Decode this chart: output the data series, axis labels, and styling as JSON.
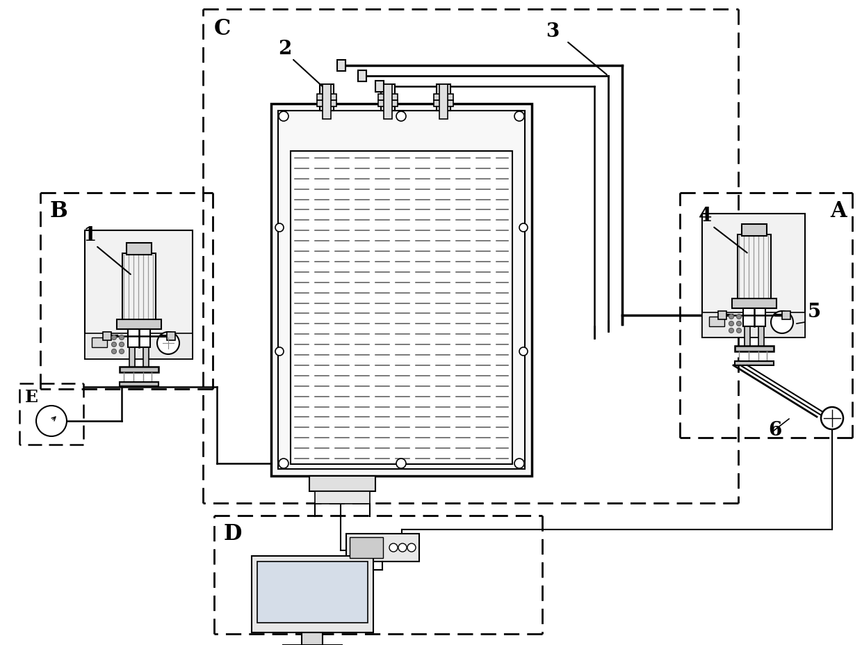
{
  "bg_color": "#ffffff",
  "line_color": "#000000",
  "label_A": "A",
  "label_B": "B",
  "label_C": "C",
  "label_D": "D",
  "label_E": "E",
  "num_1": "1",
  "num_2": "2",
  "num_3": "3",
  "num_4": "4",
  "num_5": "5",
  "num_6": "6"
}
